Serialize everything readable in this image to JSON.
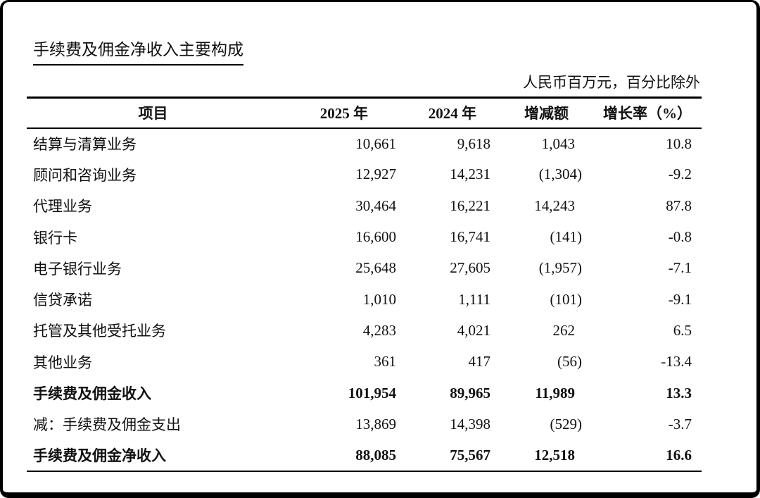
{
  "document": {
    "title": "手续费及佣金净收入主要构成",
    "unit_note": "人民币百万元，百分比除外"
  },
  "table": {
    "headers": {
      "item": "项目",
      "y2025": "2025 年",
      "y2024": "2024 年",
      "change": "增减额",
      "growth": "增长率（%）"
    },
    "rows": [
      {
        "label": "结算与清算业务",
        "y2025": "10,661",
        "y2024": "9,618",
        "change": "1,043",
        "growth": "10.8"
      },
      {
        "label": "顾问和咨询业务",
        "y2025": "12,927",
        "y2024": "14,231",
        "change": "(1,304)",
        "growth": "-9.2"
      },
      {
        "label": "代理业务",
        "y2025": "30,464",
        "y2024": "16,221",
        "change": "14,243",
        "growth": "87.8"
      },
      {
        "label": "银行卡",
        "y2025": "16,600",
        "y2024": "16,741",
        "change": "(141)",
        "growth": "-0.8"
      },
      {
        "label": "电子银行业务",
        "y2025": "25,648",
        "y2024": "27,605",
        "change": "(1,957)",
        "growth": "-7.1"
      },
      {
        "label": "信贷承诺",
        "y2025": "1,010",
        "y2024": "1,111",
        "change": "(101)",
        "growth": "-9.1"
      },
      {
        "label": "托管及其他受托业务",
        "y2025": "4,283",
        "y2024": "4,021",
        "change": "262",
        "growth": "6.5"
      },
      {
        "label": "其他业务",
        "y2025": "361",
        "y2024": "417",
        "change": "(56)",
        "growth": "-13.4"
      },
      {
        "label": "手续费及佣金收入",
        "y2025": "101,954",
        "y2024": "89,965",
        "change": "11,989",
        "growth": "13.3"
      },
      {
        "label": "减：手续费及佣金支出",
        "y2025": "13,869",
        "y2024": "14,398",
        "change": "(529)",
        "growth": "-3.7"
      },
      {
        "label": "手续费及佣金净收入",
        "y2025": "88,085",
        "y2024": "75,567",
        "change": "12,518",
        "growth": "16.6"
      }
    ]
  }
}
